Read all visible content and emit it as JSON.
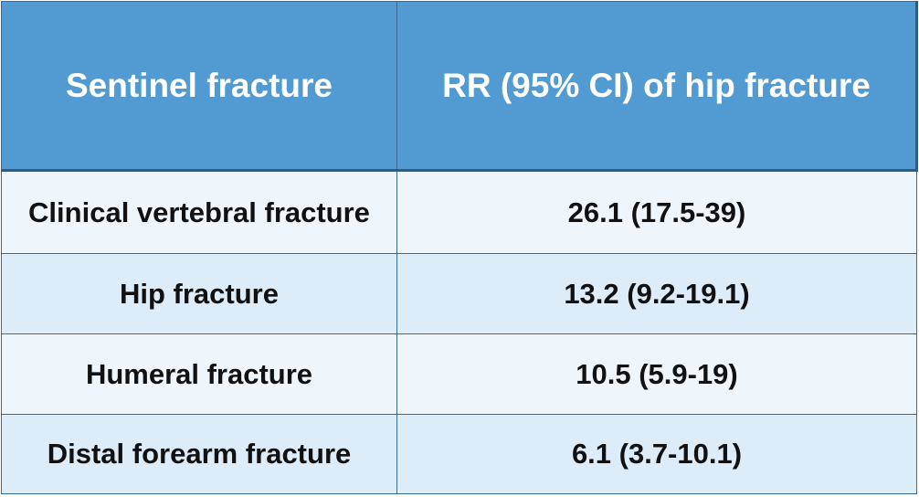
{
  "table": {
    "headers": [
      "Sentinel fracture",
      "RR (95% CI) of hip fracture"
    ],
    "rows": [
      {
        "fracture": "Clinical vertebral fracture",
        "rr": "26.1 (17.5-39)"
      },
      {
        "fracture": "Hip fracture",
        "rr": "13.2 (9.2-19.1)"
      },
      {
        "fracture": "Humeral fracture",
        "rr": "10.5 (5.9-19)"
      },
      {
        "fracture": "Distal forearm fracture",
        "rr": "6.1 (3.7-10.1)"
      }
    ]
  },
  "colors": {
    "header_bg": "#529bd2",
    "header_text": "#ffffff",
    "row_light": "#eef6fc",
    "row_dark": "#dcecf8",
    "border": "#3a6b95"
  }
}
